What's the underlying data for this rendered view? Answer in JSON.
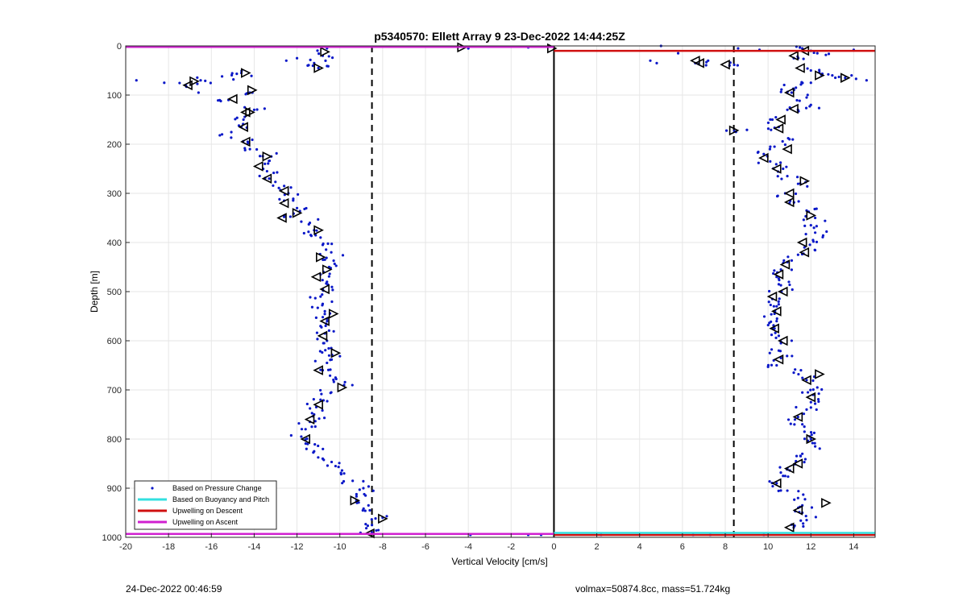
{
  "footer": {
    "timestamp": "24-Dec-2022 00:46:59",
    "params": "volmax=50874.8cc, mass=51.724kg"
  },
  "chart_data": {
    "type": "scatter",
    "title": "p5340570: Ellett Array 9 23-Dec-2022 14:44:25Z",
    "xlabel": "Vertical Velocity [cm/s]",
    "ylabel": "Depth [m]",
    "xlim": [
      -20,
      15
    ],
    "ylim": [
      0,
      1000
    ],
    "y_reversed": true,
    "grid": true,
    "legend_position": "bottom-left",
    "xticks": [
      -20,
      -18,
      -16,
      -14,
      -12,
      -10,
      -8,
      -6,
      -4,
      -2,
      0,
      2,
      4,
      6,
      8,
      10,
      12,
      14
    ],
    "yticks": [
      0,
      100,
      200,
      300,
      400,
      500,
      600,
      700,
      800,
      900,
      1000
    ],
    "colors": {
      "pressure_points": "#0a18c8",
      "buoyancy_line": "#33e0e0",
      "descent_line": "#d01010",
      "ascent_line": "#d020d0",
      "markers": "#000000"
    },
    "legend": [
      {
        "label": "Based on Pressure Change",
        "style": "dot",
        "color": "#0a18c8"
      },
      {
        "label": "Based on Buoyancy and Pitch",
        "style": "line",
        "color": "#33e0e0"
      },
      {
        "label": "Upwelling on Descent",
        "style": "line",
        "color": "#d01010"
      },
      {
        "label": "Upwelling on Ascent",
        "style": "line",
        "color": "#d020d0"
      }
    ],
    "reference_lines": [
      {
        "name": "zero",
        "x": 0,
        "style": "solid"
      },
      {
        "name": "ascent-mean",
        "x": -8.5,
        "style": "dashed"
      },
      {
        "name": "descent-mean",
        "x": 8.4,
        "style": "dashed"
      }
    ],
    "upwelling_lines": [
      {
        "series": "Upwelling on Ascent",
        "y": 2,
        "x_from": -20,
        "x_to": 0,
        "color": "#d020d0"
      },
      {
        "series": "Upwelling on Descent",
        "y": 10,
        "x_from": 0,
        "x_to": 15,
        "color": "#d01010"
      },
      {
        "series": "Upwelling on Ascent",
        "y": 993,
        "x_from": -20,
        "x_to": 0,
        "color": "#d020d0"
      },
      {
        "series": "Upwelling on Descent",
        "y": 995,
        "x_from": 0,
        "x_to": 15,
        "color": "#d01010"
      },
      {
        "series": "Based on Buoyancy and Pitch",
        "y": 991,
        "x_from": 0,
        "x_to": 15,
        "color": "#33e0e0"
      }
    ],
    "series": [
      {
        "name": "Based on Pressure Change",
        "profile": "ascent",
        "depth_x": [
          [
            5,
            -10.6
          ],
          [
            20,
            -10.8
          ],
          [
            35,
            -11.2
          ],
          [
            45,
            -11.0
          ],
          [
            55,
            -14.6
          ],
          [
            62,
            -15.5
          ],
          [
            70,
            -16.5
          ],
          [
            80,
            -17.2
          ],
          [
            95,
            -14.2
          ],
          [
            110,
            -15.2
          ],
          [
            130,
            -14.0
          ],
          [
            150,
            -14.5
          ],
          [
            165,
            -14.6
          ],
          [
            180,
            -15.5
          ],
          [
            195,
            -14.3
          ],
          [
            210,
            -14.2
          ],
          [
            225,
            -13.2
          ],
          [
            240,
            -13.5
          ],
          [
            255,
            -13.4
          ],
          [
            270,
            -13.3
          ],
          [
            285,
            -12.6
          ],
          [
            300,
            -12.4
          ],
          [
            315,
            -12.6
          ],
          [
            330,
            -12.0
          ],
          [
            345,
            -12.6
          ],
          [
            360,
            -11.4
          ],
          [
            375,
            -11.2
          ],
          [
            390,
            -10.9
          ],
          [
            405,
            -10.8
          ],
          [
            420,
            -10.4
          ],
          [
            435,
            -10.7
          ],
          [
            450,
            -10.5
          ],
          [
            465,
            -10.9
          ],
          [
            480,
            -10.6
          ],
          [
            495,
            -10.8
          ],
          [
            510,
            -10.9
          ],
          [
            525,
            -10.8
          ],
          [
            540,
            -10.7
          ],
          [
            555,
            -10.6
          ],
          [
            570,
            -10.9
          ],
          [
            585,
            -10.7
          ],
          [
            600,
            -10.6
          ],
          [
            615,
            -10.4
          ],
          [
            630,
            -10.5
          ],
          [
            645,
            -10.6
          ],
          [
            660,
            -10.8
          ],
          [
            675,
            -10.2
          ],
          [
            690,
            -9.8
          ],
          [
            705,
            -10.4
          ],
          [
            720,
            -10.9
          ],
          [
            735,
            -11.1
          ],
          [
            750,
            -11.2
          ],
          [
            765,
            -11.4
          ],
          [
            780,
            -11.6
          ],
          [
            795,
            -11.8
          ],
          [
            810,
            -11.5
          ],
          [
            825,
            -11.2
          ],
          [
            840,
            -10.8
          ],
          [
            855,
            -10.2
          ],
          [
            870,
            -9.8
          ],
          [
            885,
            -9.4
          ],
          [
            900,
            -8.9
          ],
          [
            915,
            -8.8
          ],
          [
            930,
            -9.2
          ],
          [
            945,
            -8.6
          ],
          [
            960,
            -8.0
          ],
          [
            975,
            -8.5
          ],
          [
            990,
            -8.5
          ]
        ]
      },
      {
        "name": "Based on Pressure Change",
        "profile": "descent",
        "depth_x": [
          [
            5,
            11.6
          ],
          [
            15,
            12.3
          ],
          [
            25,
            11.2
          ],
          [
            35,
            6.6
          ],
          [
            40,
            8.2
          ],
          [
            50,
            12.0
          ],
          [
            60,
            13.0
          ],
          [
            65,
            13.6
          ],
          [
            75,
            12.0
          ],
          [
            85,
            11.3
          ],
          [
            95,
            11.1
          ],
          [
            105,
            11.8
          ],
          [
            120,
            12.0
          ],
          [
            130,
            10.9
          ],
          [
            150,
            10.2
          ],
          [
            165,
            10.5
          ],
          [
            175,
            8.5
          ],
          [
            190,
            11.0
          ],
          [
            205,
            10.3
          ],
          [
            220,
            9.8
          ],
          [
            235,
            10.1
          ],
          [
            250,
            10.7
          ],
          [
            265,
            10.9
          ],
          [
            280,
            11.5
          ],
          [
            300,
            10.8
          ],
          [
            320,
            11.0
          ],
          [
            335,
            11.8
          ],
          [
            350,
            12.2
          ],
          [
            365,
            12.0
          ],
          [
            380,
            12.2
          ],
          [
            395,
            12.1
          ],
          [
            410,
            11.7
          ],
          [
            425,
            11.4
          ],
          [
            440,
            10.9
          ],
          [
            455,
            10.6
          ],
          [
            470,
            10.4
          ],
          [
            485,
            10.5
          ],
          [
            500,
            10.6
          ],
          [
            515,
            10.2
          ],
          [
            530,
            10.4
          ],
          [
            545,
            10.3
          ],
          [
            560,
            10.4
          ],
          [
            575,
            10.3
          ],
          [
            590,
            10.5
          ],
          [
            605,
            10.6
          ],
          [
            620,
            10.5
          ],
          [
            635,
            10.6
          ],
          [
            650,
            10.4
          ],
          [
            665,
            11.2
          ],
          [
            680,
            11.8
          ],
          [
            695,
            12.3
          ],
          [
            710,
            12.1
          ],
          [
            725,
            12.0
          ],
          [
            740,
            11.8
          ],
          [
            755,
            11.4
          ],
          [
            770,
            11.6
          ],
          [
            785,
            11.7
          ],
          [
            800,
            12.0
          ],
          [
            815,
            12.2
          ],
          [
            830,
            11.6
          ],
          [
            845,
            11.3
          ],
          [
            860,
            10.9
          ],
          [
            875,
            10.7
          ],
          [
            890,
            10.4
          ],
          [
            905,
            10.9
          ],
          [
            920,
            11.4
          ],
          [
            935,
            11.6
          ],
          [
            950,
            11.6
          ],
          [
            965,
            11.8
          ],
          [
            980,
            11.2
          ]
        ]
      },
      {
        "name": "Based on Pressure Change",
        "profile": "surface-and-bottom-outliers",
        "depth_x": [
          [
            30,
            -12.5
          ],
          [
            25,
            -12.0
          ],
          [
            40,
            -11.5
          ],
          [
            70,
            -19.5
          ],
          [
            75,
            -18.2
          ],
          [
            95,
            -16.6
          ],
          [
            5,
            -4.0
          ],
          [
            3,
            -1.2
          ],
          [
            0,
            5.0
          ],
          [
            15,
            5.8
          ],
          [
            30,
            4.5
          ],
          [
            35,
            4.8
          ],
          [
            30,
            7.2
          ],
          [
            5,
            8.6
          ],
          [
            8,
            9.6
          ],
          [
            10,
            12.0
          ],
          [
            8,
            14.0
          ],
          [
            70,
            14.6
          ],
          [
            60,
            13.9
          ],
          [
            995,
            -3.9
          ],
          [
            995,
            -1.2
          ],
          [
            995,
            -0.6
          ],
          [
            995,
            2.2
          ],
          [
            995,
            6.5
          ],
          [
            995,
            7.3
          ],
          [
            995,
            8.0
          ],
          [
            995,
            9.8
          ]
        ]
      }
    ],
    "markers_descending": [
      [
        -10.7,
        12
      ],
      [
        -11.0,
        45
      ],
      [
        -14.4,
        55
      ],
      [
        -16.8,
        72
      ],
      [
        -14.1,
        90
      ],
      [
        -14.2,
        135
      ],
      [
        -13.4,
        225
      ],
      [
        -12.0,
        340
      ],
      [
        -11.0,
        375
      ],
      [
        -10.9,
        430
      ],
      [
        -10.6,
        455
      ],
      [
        -10.3,
        545
      ],
      [
        -10.2,
        625
      ],
      [
        -9.9,
        695
      ],
      [
        -9.3,
        925
      ],
      [
        -8.0,
        962
      ],
      [
        -4.3,
        3
      ],
      [
        -0.1,
        5
      ],
      [
        8.4,
        172
      ],
      [
        12.4,
        60
      ],
      [
        13.6,
        65
      ],
      [
        12.4,
        668
      ],
      [
        12.7,
        930
      ],
      [
        12.0,
        800
      ],
      [
        12.0,
        345
      ],
      [
        11.7,
        275
      ]
    ],
    "markers_ascending": [
      [
        -17.1,
        80
      ],
      [
        -15.0,
        108
      ],
      [
        -14.4,
        135
      ],
      [
        -14.5,
        165
      ],
      [
        -14.4,
        195
      ],
      [
        -13.8,
        245
      ],
      [
        -13.4,
        270
      ],
      [
        -12.6,
        295
      ],
      [
        -12.6,
        320
      ],
      [
        -12.7,
        350
      ],
      [
        -11.1,
        470
      ],
      [
        -10.7,
        495
      ],
      [
        -10.7,
        560
      ],
      [
        -10.8,
        590
      ],
      [
        -11.0,
        660
      ],
      [
        -11.0,
        730
      ],
      [
        -11.4,
        760
      ],
      [
        -11.6,
        800
      ],
      [
        -8.6,
        992
      ],
      [
        6.6,
        30
      ],
      [
        6.8,
        35
      ],
      [
        8.0,
        38
      ],
      [
        11.5,
        45
      ],
      [
        11.2,
        20
      ],
      [
        11.7,
        10
      ],
      [
        11.0,
        95
      ],
      [
        11.2,
        128
      ],
      [
        10.6,
        150
      ],
      [
        10.5,
        168
      ],
      [
        10.9,
        210
      ],
      [
        9.8,
        228
      ],
      [
        10.4,
        250
      ],
      [
        11.0,
        300
      ],
      [
        11.0,
        318
      ],
      [
        11.6,
        400
      ],
      [
        11.7,
        420
      ],
      [
        10.8,
        445
      ],
      [
        10.5,
        465
      ],
      [
        10.7,
        500
      ],
      [
        10.2,
        510
      ],
      [
        10.4,
        540
      ],
      [
        10.3,
        575
      ],
      [
        10.7,
        600
      ],
      [
        10.5,
        638
      ],
      [
        11.8,
        680
      ],
      [
        12.0,
        715
      ],
      [
        11.4,
        755
      ],
      [
        11.0,
        860
      ],
      [
        11.4,
        850
      ],
      [
        10.4,
        890
      ],
      [
        11.4,
        945
      ],
      [
        11.0,
        980
      ]
    ]
  }
}
